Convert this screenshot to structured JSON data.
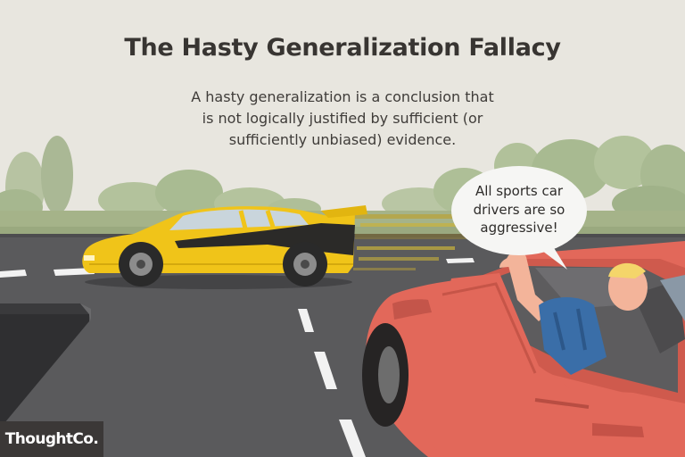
{
  "title": "The Hasty Generalization Fallacy",
  "subtitle_lines": [
    "A hasty generalization is a conclusion that",
    "is not logically justified by sufficient (or",
    "sufficiently unbiased) evidence."
  ],
  "speech_bubble_lines": [
    "All sports car",
    "drivers are so",
    "aggressive!"
  ],
  "logo": "ThoughtCo.",
  "colors": {
    "background": "#e8e6df",
    "road": "#5a5a5c",
    "sports_car": "#f0c419",
    "sedan": "#e2685a",
    "shirt": "#3a6ea8",
    "title_text": "#383532"
  }
}
